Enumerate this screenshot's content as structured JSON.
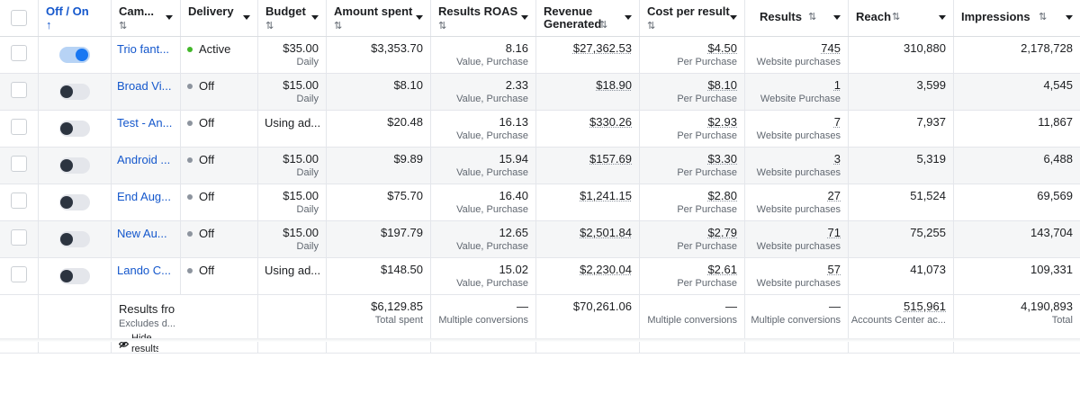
{
  "headers": [
    {
      "label": "",
      "sort": ""
    },
    {
      "label": "Off / On",
      "sort": "↑"
    },
    {
      "label": "Cam...",
      "sort": "⇅"
    },
    {
      "label": "Delivery",
      "sort": ""
    },
    {
      "label": "Budget",
      "sort": "⇅"
    },
    {
      "label": "Amount spent",
      "sort": "⇅"
    },
    {
      "label": "Results ROAS",
      "sort": "⇅"
    },
    {
      "label": "Revenue Generated",
      "sort": "⇅"
    },
    {
      "label": "Cost per result",
      "sort": "⇅"
    },
    {
      "label": "Results",
      "sort": "⇅"
    },
    {
      "label": "Reach",
      "sort": "⇅"
    },
    {
      "label": "Impressions",
      "sort": "⇅"
    }
  ],
  "rows": [
    {
      "on": true,
      "campaign": "Trio fant...",
      "delivery": "Active",
      "budget": "$35.00",
      "budget_sub": "Daily",
      "spent": "$3,353.70",
      "roas": "8.16",
      "roas_sub": "Value, Purchase",
      "revenue": "$27,362.53",
      "cpr": "$4.50",
      "cpr_sub": "Per Purchase",
      "results": "745",
      "results_sub": "Website purchases",
      "reach": "310,880",
      "impressions": "2,178,728"
    },
    {
      "on": false,
      "campaign": "Broad Vi...",
      "delivery": "Off",
      "budget": "$15.00",
      "budget_sub": "Daily",
      "spent": "$8.10",
      "roas": "2.33",
      "roas_sub": "Value, Purchase",
      "revenue": "$18.90",
      "cpr": "$8.10",
      "cpr_sub": "Per Purchase",
      "results": "1",
      "results_sub": "Website Purchase",
      "reach": "3,599",
      "impressions": "4,545"
    },
    {
      "on": false,
      "campaign": "Test - An...",
      "delivery": "Off",
      "budget": "Using ad...",
      "budget_sub": "",
      "spent": "$20.48",
      "roas": "16.13",
      "roas_sub": "Value, Purchase",
      "revenue": "$330.26",
      "cpr": "$2.93",
      "cpr_sub": "Per Purchase",
      "results": "7",
      "results_sub": "Website purchases",
      "reach": "7,937",
      "impressions": "11,867"
    },
    {
      "on": false,
      "campaign": "Android ...",
      "delivery": "Off",
      "budget": "$15.00",
      "budget_sub": "Daily",
      "spent": "$9.89",
      "roas": "15.94",
      "roas_sub": "Value, Purchase",
      "revenue": "$157.69",
      "cpr": "$3.30",
      "cpr_sub": "Per Purchase",
      "results": "3",
      "results_sub": "Website purchases",
      "reach": "5,319",
      "impressions": "6,488"
    },
    {
      "on": false,
      "campaign": "End Aug...",
      "delivery": "Off",
      "budget": "$15.00",
      "budget_sub": "Daily",
      "spent": "$75.70",
      "roas": "16.40",
      "roas_sub": "Value, Purchase",
      "revenue": "$1,241.15",
      "cpr": "$2.80",
      "cpr_sub": "Per Purchase",
      "results": "27",
      "results_sub": "Website purchases",
      "reach": "51,524",
      "impressions": "69,569"
    },
    {
      "on": false,
      "campaign": "New Au...",
      "delivery": "Off",
      "budget": "$15.00",
      "budget_sub": "Daily",
      "spent": "$197.79",
      "roas": "12.65",
      "roas_sub": "Value, Purchase",
      "revenue": "$2,501.84",
      "cpr": "$2.79",
      "cpr_sub": "Per Purchase",
      "results": "71",
      "results_sub": "Website purchases",
      "reach": "75,255",
      "impressions": "143,704"
    },
    {
      "on": false,
      "campaign": "Lando C...",
      "delivery": "Off",
      "budget": "Using ad...",
      "budget_sub": "",
      "spent": "$148.50",
      "roas": "15.02",
      "roas_sub": "Value, Purchase",
      "revenue": "$2,230.04",
      "cpr": "$2.61",
      "cpr_sub": "Per Purchase",
      "results": "57",
      "results_sub": "Website purchases",
      "reach": "41,073",
      "impressions": "109,331"
    }
  ],
  "summary": {
    "title": "Results fro",
    "subtitle": "Excludes d...",
    "hide_label": "Hide results",
    "spent": "$6,129.85",
    "spent_sub": "Total spent",
    "roas": "—",
    "roas_sub": "Multiple conversions",
    "revenue": "$70,261.06",
    "cpr": "—",
    "cpr_sub": "Multiple conversions",
    "results": "—",
    "results_sub": "Multiple conversions",
    "reach": "515,961",
    "reach_sub": "Accounts Center ac...",
    "impressions": "4,190,893",
    "impressions_sub": "Total"
  },
  "colors": {
    "link": "#1457cc",
    "toggle_on": "#1877f2",
    "active_dot": "#42b72a"
  }
}
